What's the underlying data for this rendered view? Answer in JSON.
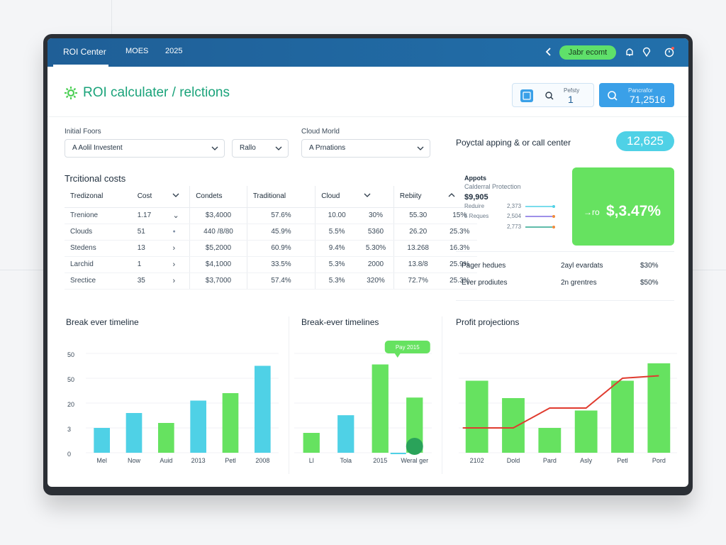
{
  "topbar": {
    "title": "ROI Center",
    "menu1": "MOES",
    "menu2": "2025",
    "pill": "Jabr ecomt"
  },
  "header": {
    "title": "ROI calculater / relctions",
    "box_a_small": "Pefsty",
    "box_a_value": "1",
    "box_b_small": "Pancrafor",
    "box_b_value": "71,2516"
  },
  "inputs": {
    "initial_label": "Initial Foors",
    "initial_value": "A Aolil Investent",
    "ratio_value": "Rallo",
    "cloud_label": "Cloud Morld",
    "cloud_value": "A Prnations"
  },
  "table": {
    "title": "Trcitional costs",
    "headers": [
      "Tredizonal",
      "Cost",
      "",
      "Condets",
      "Traditional",
      "Cloud",
      "",
      "Rebiity",
      ""
    ],
    "rows": [
      [
        "Trenione",
        "1.17",
        "",
        "$3,4000",
        "57.6%",
        "10.00",
        "30%",
        "55.30",
        "15%"
      ],
      [
        "Clouds",
        "51",
        "",
        "440 /8/80",
        "45.9%",
        "5.5%",
        "5360",
        "26.20",
        "25.3%"
      ],
      [
        "Stedens",
        "13",
        "",
        "$5,2000",
        "60.9%",
        "9.4%",
        "5.30%",
        "13.268",
        "16.3%"
      ],
      [
        "Larchid",
        "1",
        "",
        "$4,1000",
        "33.5%",
        "5.3%",
        "2000",
        "13.8/8",
        "25.9%"
      ],
      [
        "Srectice",
        "35",
        "",
        "$3,7000",
        "57.4%",
        "5.3%",
        "320%",
        "72.7%",
        "25.3%"
      ]
    ]
  },
  "right_panel": {
    "title": "Poyctal apping & or call center",
    "badge": "12,625",
    "mini_title": "Appots",
    "mini_sub": "Calderral Protection",
    "mini_value": "$9,905",
    "mini_row1_label": "Reduire",
    "mini_row1_value": "2,373",
    "mini_row2_label": "5 Reques",
    "mini_row2_value": "2,504",
    "mini_row3_value": "2,773",
    "green_arrow": "→ro",
    "green_value": "$,3.47%",
    "stat1_label": "Pager hedues",
    "stat1_mid": "2ayl evardats",
    "stat1_value": "$30%",
    "stat2_label": "Ever prodiutes",
    "stat2_mid": "2n grentres",
    "stat2_value": "$50%",
    "accent_green": "#66e260",
    "accent_cyan": "#4fd1e6"
  },
  "chart_data": [
    {
      "type": "bar",
      "title": "Break ever timeline",
      "categories": [
        "Mel",
        "Now",
        "Auid",
        "2013",
        "Petl",
        "2008"
      ],
      "values": [
        10,
        16,
        12,
        21,
        24,
        35
      ],
      "colors": [
        "#4fd1e6",
        "#4fd1e6",
        "#66e260",
        "#4fd1e6",
        "#66e260",
        "#4fd1e6"
      ],
      "y_ticks": [
        "50",
        "50",
        "20",
        "3",
        "0"
      ],
      "ylim": [
        0,
        40
      ]
    },
    {
      "type": "bar",
      "title": "Break-ever timelines",
      "categories": [
        "Ll",
        "Tola",
        "2015",
        "Weral ger"
      ],
      "values": [
        9,
        17,
        40,
        25
      ],
      "colors": [
        "#66e260",
        "#4fd1e6",
        "#66e260",
        "#66e260"
      ],
      "annotation": "Pay 2015",
      "ylim": [
        0,
        45
      ]
    },
    {
      "type": "bar",
      "title": "Profit projections",
      "categories": [
        "2102",
        "Dold",
        "Pard",
        "Asly",
        "Petl",
        "Pord"
      ],
      "values": [
        29,
        22,
        10,
        17,
        29,
        36
      ],
      "line_values": [
        10,
        10,
        18,
        18,
        30,
        31
      ],
      "line_color": "#e03b2f",
      "bar_color": "#66e260",
      "ylim": [
        0,
        40
      ]
    }
  ]
}
